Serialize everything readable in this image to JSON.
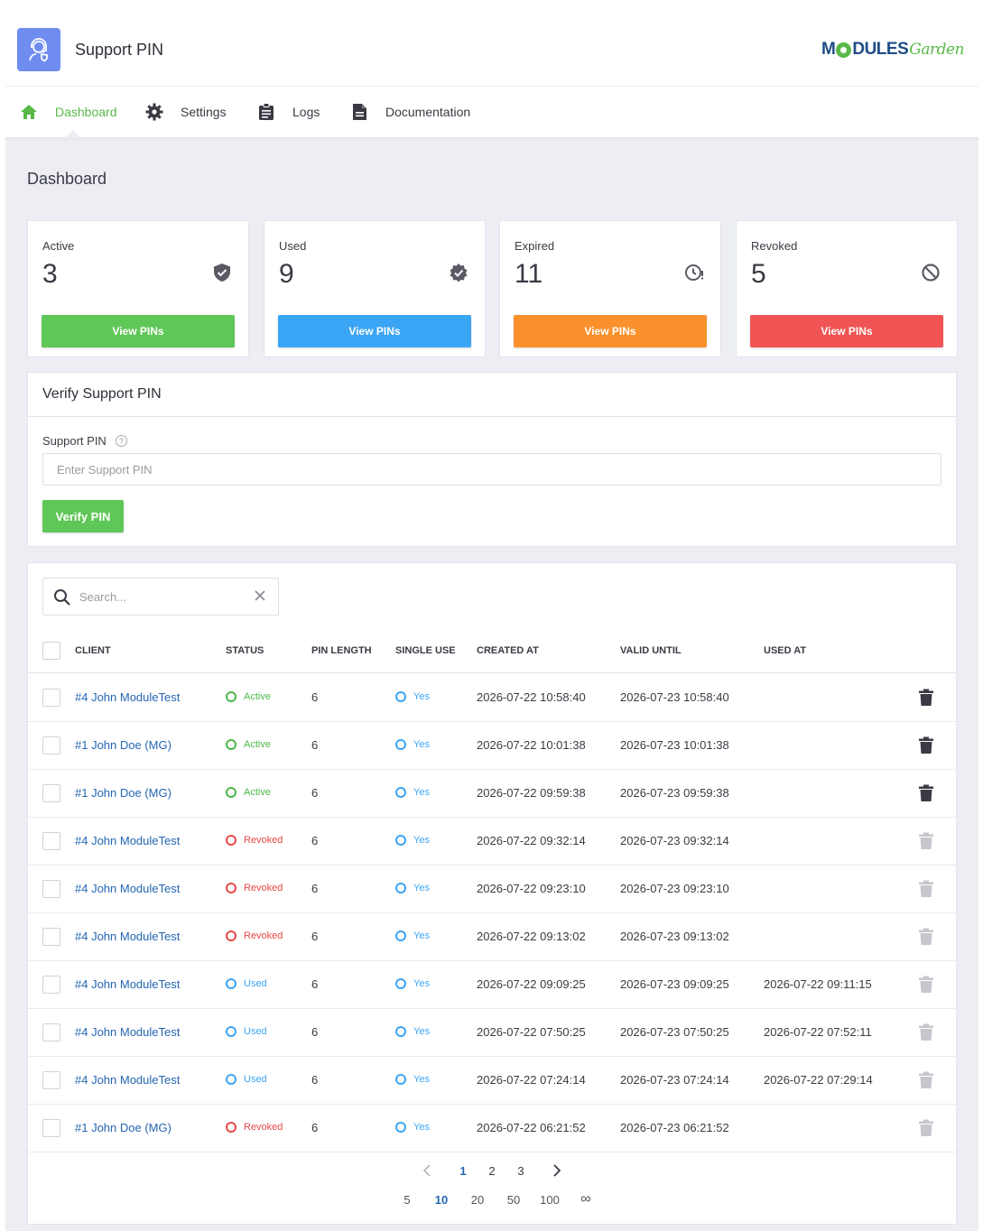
{
  "header": {
    "app_title": "Support PIN",
    "logo": {
      "part1": "M",
      "part2": "DULES",
      "part3": "Garden"
    },
    "app_icon": "headset-shield-icon"
  },
  "nav": {
    "items": [
      {
        "label": "Dashboard",
        "icon": "home-icon",
        "active": true
      },
      {
        "label": "Settings",
        "icon": "gear-icon",
        "active": false
      },
      {
        "label": "Logs",
        "icon": "clipboard-icon",
        "active": false
      },
      {
        "label": "Documentation",
        "icon": "document-icon",
        "active": false
      }
    ]
  },
  "page_title": "Dashboard",
  "stats": [
    {
      "label": "Active",
      "value": "3",
      "button": "View PINs",
      "color": "#5fc758",
      "icon": "shield-check-icon"
    },
    {
      "label": "Used",
      "value": "9",
      "button": "View PINs",
      "color": "#3ba5f5",
      "icon": "verified-badge-icon"
    },
    {
      "label": "Expired",
      "value": "11",
      "button": "View PINs",
      "color": "#fb912c",
      "icon": "clock-alert-icon"
    },
    {
      "label": "Revoked",
      "value": "5",
      "button": "View PINs",
      "color": "#f15454",
      "icon": "block-icon"
    }
  ],
  "verify": {
    "title": "Verify Support PIN",
    "field_label": "Support PIN",
    "placeholder": "Enter Support PIN",
    "button": "Verify PIN"
  },
  "table": {
    "search_placeholder": "Search...",
    "columns": [
      "CLIENT",
      "STATUS",
      "PIN LENGTH",
      "SINGLE USE",
      "CREATED AT",
      "VALID UNTIL",
      "USED AT"
    ],
    "rows": [
      {
        "client": "#4 John ModuleTest",
        "status": "Active",
        "pin_length": "6",
        "single_use": "Yes",
        "created": "2026-07-22 10:58:40",
        "valid": "2026-07-23 10:58:40",
        "used": "",
        "deletable": true
      },
      {
        "client": "#1 John Doe (MG)",
        "status": "Active",
        "pin_length": "6",
        "single_use": "Yes",
        "created": "2026-07-22 10:01:38",
        "valid": "2026-07-23 10:01:38",
        "used": "",
        "deletable": true
      },
      {
        "client": "#1 John Doe (MG)",
        "status": "Active",
        "pin_length": "6",
        "single_use": "Yes",
        "created": "2026-07-22 09:59:38",
        "valid": "2026-07-23 09:59:38",
        "used": "",
        "deletable": true
      },
      {
        "client": "#4 John ModuleTest",
        "status": "Revoked",
        "pin_length": "6",
        "single_use": "Yes",
        "created": "2026-07-22 09:32:14",
        "valid": "2026-07-23 09:32:14",
        "used": "",
        "deletable": false
      },
      {
        "client": "#4 John ModuleTest",
        "status": "Revoked",
        "pin_length": "6",
        "single_use": "Yes",
        "created": "2026-07-22 09:23:10",
        "valid": "2026-07-23 09:23:10",
        "used": "",
        "deletable": false
      },
      {
        "client": "#4 John ModuleTest",
        "status": "Revoked",
        "pin_length": "6",
        "single_use": "Yes",
        "created": "2026-07-22 09:13:02",
        "valid": "2026-07-23 09:13:02",
        "used": "",
        "deletable": false
      },
      {
        "client": "#4 John ModuleTest",
        "status": "Used",
        "pin_length": "6",
        "single_use": "Yes",
        "created": "2026-07-22 09:09:25",
        "valid": "2026-07-23 09:09:25",
        "used": "2026-07-22 09:11:15",
        "deletable": false
      },
      {
        "client": "#4 John ModuleTest",
        "status": "Used",
        "pin_length": "6",
        "single_use": "Yes",
        "created": "2026-07-22 07:50:25",
        "valid": "2026-07-23 07:50:25",
        "used": "2026-07-22 07:52:11",
        "deletable": false
      },
      {
        "client": "#4 John ModuleTest",
        "status": "Used",
        "pin_length": "6",
        "single_use": "Yes",
        "created": "2026-07-22 07:24:14",
        "valid": "2026-07-23 07:24:14",
        "used": "2026-07-22 07:29:14",
        "deletable": false
      },
      {
        "client": "#1 John Doe (MG)",
        "status": "Revoked",
        "pin_length": "6",
        "single_use": "Yes",
        "created": "2026-07-22 06:21:52",
        "valid": "2026-07-23 06:21:52",
        "used": "",
        "deletable": false
      }
    ],
    "status_colors": {
      "Active": "#4cb848",
      "Revoked": "#e94848",
      "Used": "#3ba5f5",
      "Yes": "#3ba5f5"
    },
    "pagination": {
      "pages": [
        "1",
        "2",
        "3"
      ],
      "current": "1"
    },
    "page_sizes": {
      "options": [
        "5",
        "10",
        "20",
        "50",
        "100",
        "∞"
      ],
      "current": "10"
    }
  }
}
